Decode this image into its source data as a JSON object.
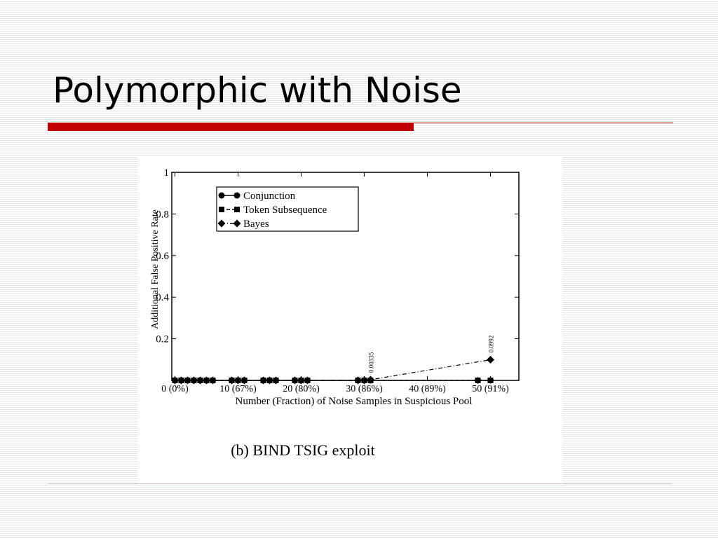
{
  "slide": {
    "title": "Polymorphic with Noise"
  },
  "chart_data": {
    "type": "line",
    "caption": "(b) BIND TSIG exploit",
    "x_label": "Number (Fraction) of Noise Samples in Suspicious Pool",
    "y_label": "Additional False Positive Rate",
    "xlim": [
      -0.5,
      54.5
    ],
    "xticks": [
      {
        "value": 0,
        "label": "0 (0%)"
      },
      {
        "value": 10,
        "label": "10 (67%)"
      },
      {
        "value": 20,
        "label": "20 (80%)"
      },
      {
        "value": 30,
        "label": "30 (86%)"
      },
      {
        "value": 40,
        "label": "40 (89%)"
      },
      {
        "value": 50,
        "label": "50 (91%)"
      }
    ],
    "ylim": [
      0,
      1
    ],
    "yticks": [
      0.2,
      0.4,
      0.6,
      0.8,
      1
    ],
    "legend": "upper left",
    "series": [
      {
        "name": "Conjunction",
        "color": "#000000",
        "marker": "circle",
        "linestyle": "solid",
        "x": [
          0,
          1,
          2,
          3,
          4,
          5,
          6,
          9,
          10,
          11,
          14,
          15,
          16,
          19,
          20,
          21,
          29,
          30,
          31,
          48,
          50
        ],
        "values": [
          0,
          0,
          0,
          0,
          0,
          0,
          0,
          0,
          0,
          0,
          0,
          0,
          0,
          0,
          0,
          0,
          0,
          0,
          0,
          0,
          0
        ]
      },
      {
        "name": "Token Subsequence",
        "color": "#000000",
        "marker": "square",
        "linestyle": "dashed",
        "x": [
          0,
          1,
          2,
          3,
          4,
          5,
          6,
          9,
          10,
          11,
          14,
          15,
          16,
          19,
          20,
          21,
          29,
          30,
          31,
          48,
          50
        ],
        "values": [
          0,
          0,
          0,
          0,
          0,
          0,
          0,
          0,
          0,
          0,
          0,
          0,
          0,
          0,
          0,
          0,
          0,
          0,
          0,
          0,
          0
        ]
      },
      {
        "name": "Bayes",
        "color": "#000000",
        "marker": "diamond",
        "linestyle": "dashdot",
        "x": [
          0,
          1,
          2,
          3,
          4,
          5,
          6,
          9,
          10,
          11,
          14,
          15,
          16,
          19,
          20,
          21,
          29,
          30,
          31,
          50
        ],
        "values": [
          0,
          0,
          0,
          0,
          0,
          0,
          0,
          0,
          0,
          0,
          0,
          0,
          0,
          0,
          0,
          0,
          0,
          0,
          0.00335,
          0.0992
        ],
        "value_labels": [
          null,
          null,
          null,
          null,
          null,
          null,
          null,
          null,
          null,
          null,
          null,
          null,
          null,
          null,
          null,
          null,
          null,
          null,
          "0.00335",
          "0.0992"
        ]
      }
    ]
  }
}
